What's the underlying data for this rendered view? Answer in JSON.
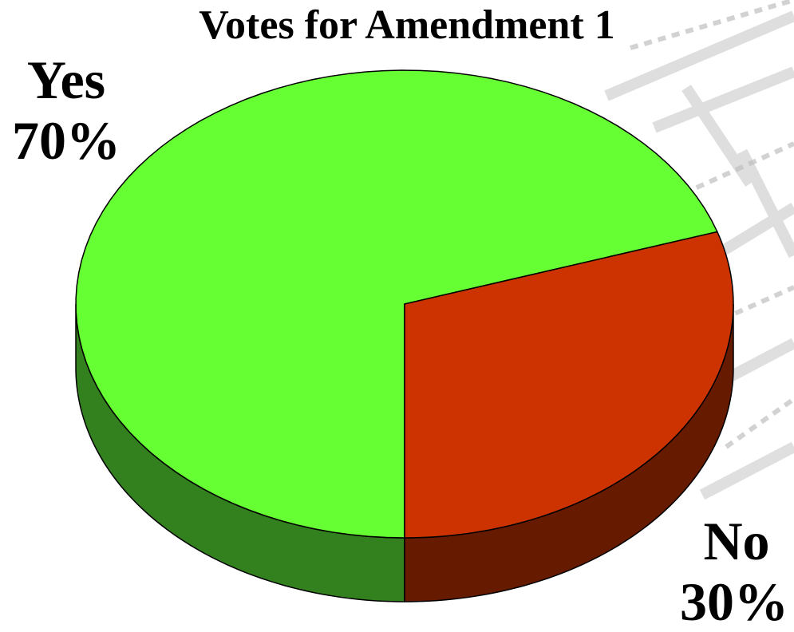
{
  "chart_data": {
    "type": "pie",
    "title": "Votes for Amendment 1",
    "slices": [
      {
        "label": "Yes",
        "value": 70,
        "value_label": "70%",
        "color": "#66ff33",
        "side_color": "#33801e"
      },
      {
        "label": "No",
        "value": 30,
        "value_label": "30%",
        "color": "#cc3300",
        "side_color": "#661a00"
      }
    ],
    "style": "3d"
  }
}
